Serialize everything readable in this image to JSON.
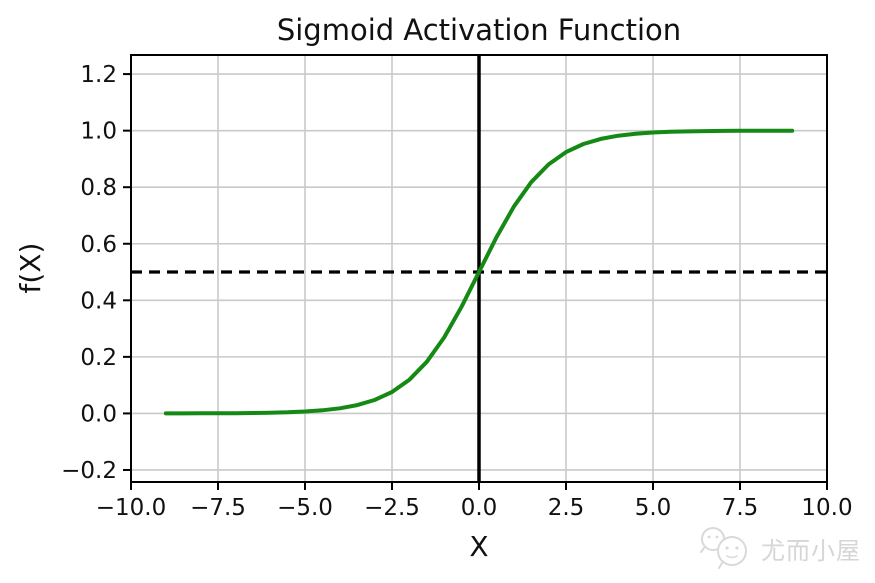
{
  "figure": {
    "background": "#ffffff"
  },
  "watermark": {
    "text": "尤而小屋",
    "icon": "chat-bubbles-logo-icon",
    "color": "#d6d6d6"
  },
  "chart_data": {
    "type": "line",
    "title": "Sigmoid Activation Function",
    "xlabel": "X",
    "ylabel": "f(X)",
    "xlim": [
      -10.0,
      10.0
    ],
    "ylim": [
      -0.2425,
      1.2675
    ],
    "grid": true,
    "grid_color": "#c9c9c9",
    "axis_color": "#000000",
    "x_ticks": [
      -10.0,
      -7.5,
      -5.0,
      -2.5,
      0.0,
      2.5,
      5.0,
      7.5,
      10.0
    ],
    "x_tick_labels": [
      "−10.0",
      "−7.5",
      "−5.0",
      "−2.5",
      "0.0",
      "2.5",
      "5.0",
      "7.5",
      "10.0"
    ],
    "y_ticks": [
      -0.2,
      0.0,
      0.2,
      0.4,
      0.6,
      0.8,
      1.0,
      1.2
    ],
    "y_tick_labels": [
      "−0.2",
      "0.0",
      "0.2",
      "0.4",
      "0.6",
      "0.8",
      "1.0",
      "1.2"
    ],
    "series": [
      {
        "name": "sigmoid",
        "color": "#148a14",
        "linewidth": 4,
        "x": [
          -9,
          -8.5,
          -8,
          -7.5,
          -7,
          -6.5,
          -6,
          -5.5,
          -5,
          -4.5,
          -4,
          -3.5,
          -3,
          -2.5,
          -2,
          -1.5,
          -1,
          -0.5,
          0,
          0.5,
          1,
          1.5,
          2,
          2.5,
          3,
          3.5,
          4,
          4.5,
          5,
          5.5,
          6,
          6.5,
          7,
          7.5,
          8,
          8.5,
          9
        ],
        "y": [
          0.0001,
          0.0002,
          0.0003,
          0.0006,
          0.0009,
          0.0015,
          0.0025,
          0.0041,
          0.0067,
          0.011,
          0.018,
          0.0293,
          0.0474,
          0.0759,
          0.1192,
          0.1824,
          0.2689,
          0.3775,
          0.5,
          0.6225,
          0.7311,
          0.8176,
          0.8808,
          0.9241,
          0.9526,
          0.9707,
          0.982,
          0.989,
          0.9933,
          0.9959,
          0.9975,
          0.9985,
          0.9991,
          0.9994,
          0.9997,
          0.9998,
          0.9999
        ]
      }
    ],
    "reference_lines": [
      {
        "type": "vline",
        "x": 0,
        "color": "#000000",
        "style": "solid",
        "linewidth": 3.5
      },
      {
        "type": "hline",
        "y": 0.5,
        "color": "#000000",
        "style": "dashed",
        "dash": [
          11,
          7
        ],
        "linewidth": 3.2
      }
    ],
    "legend": null
  }
}
